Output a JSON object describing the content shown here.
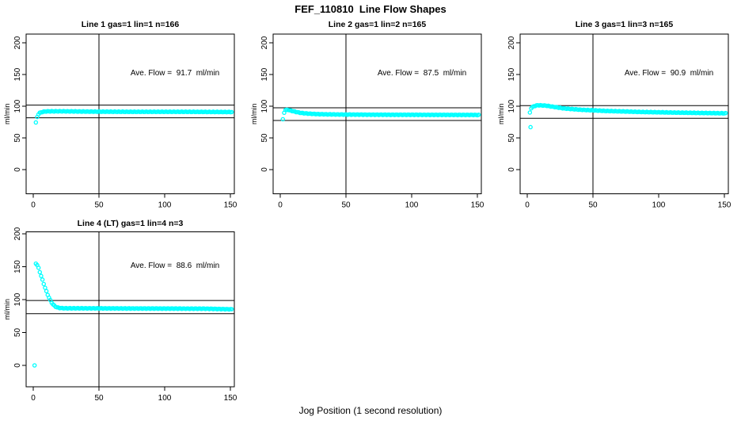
{
  "title": "FEF_110810  Line Flow Shapes",
  "xlabel": "Jog Position (1 second resolution)",
  "ylabel": "ml/min",
  "colors": {
    "marker": "#00FFFF",
    "axis": "#000000",
    "background": "#FFFFFF",
    "text": "#000000"
  },
  "axes": {
    "x_ticks": [
      0,
      50,
      100,
      150
    ],
    "y_ticks": [
      0,
      50,
      100,
      150,
      200
    ]
  },
  "chart_data": [
    {
      "type": "scatter",
      "title": "Line 1 gas=1 lin=1 n=166",
      "line": 1,
      "gas": 1,
      "lin": 1,
      "n": 166,
      "annotation": "Ave. Flow =  91.7  ml/min",
      "ave_flow_ml_min": 91.7,
      "ylabel": "ml/min",
      "marker": "open-circle",
      "marker_color": "#00FFFF",
      "x_ticks": [
        0,
        50,
        100,
        150
      ],
      "y_ticks": [
        0,
        50,
        100,
        150,
        200
      ],
      "xlim": [
        0,
        152
      ],
      "ylim": [
        0,
        200
      ],
      "grid": false,
      "hlines": [
        101.7,
        81.7
      ],
      "vline": 50,
      "x_step": 1,
      "keypoints": [
        [
          2,
          74
        ],
        [
          3,
          83
        ],
        [
          4,
          87.5
        ],
        [
          5,
          89.5
        ],
        [
          7,
          91
        ],
        [
          10,
          91.8
        ],
        [
          20,
          92
        ],
        [
          40,
          91.5
        ],
        [
          70,
          91.2
        ],
        [
          110,
          91.2
        ],
        [
          151,
          90.8
        ]
      ],
      "outliers": []
    },
    {
      "type": "scatter",
      "title": "Line 2 gas=1 lin=2 n=165",
      "line": 2,
      "gas": 1,
      "lin": 2,
      "n": 165,
      "annotation": "Ave. Flow =  87.5  ml/min",
      "ave_flow_ml_min": 87.5,
      "ylabel": "ml/min",
      "marker": "open-circle",
      "marker_color": "#00FFFF",
      "x_ticks": [
        0,
        50,
        100,
        150
      ],
      "y_ticks": [
        0,
        50,
        100,
        150,
        200
      ],
      "xlim": [
        0,
        152
      ],
      "ylim": [
        0,
        200
      ],
      "grid": false,
      "hlines": [
        97.5,
        77.5
      ],
      "vline": 50,
      "x_step": 1,
      "keypoints": [
        [
          2,
          79
        ],
        [
          3,
          90
        ],
        [
          4,
          94
        ],
        [
          6,
          94.3
        ],
        [
          8,
          93
        ],
        [
          12,
          91
        ],
        [
          16,
          89.3
        ],
        [
          22,
          88.2
        ],
        [
          30,
          87.4
        ],
        [
          45,
          86.9
        ],
        [
          70,
          86.6
        ],
        [
          110,
          86.4
        ],
        [
          151,
          86.2
        ]
      ],
      "outliers": []
    },
    {
      "type": "scatter",
      "title": "Line 3 gas=1 lin=3 n=165",
      "line": 3,
      "gas": 1,
      "lin": 3,
      "n": 165,
      "annotation": "Ave. Flow =  90.9  ml/min",
      "ave_flow_ml_min": 90.9,
      "ylabel": "ml/min",
      "marker": "open-circle",
      "marker_color": "#00FFFF",
      "x_ticks": [
        0,
        50,
        100,
        150
      ],
      "y_ticks": [
        0,
        50,
        100,
        150,
        200
      ],
      "xlim": [
        0,
        152
      ],
      "ylim": [
        0,
        200
      ],
      "grid": false,
      "hlines": [
        100.9,
        80.9
      ],
      "vline": 50,
      "x_step": 1,
      "keypoints": [
        [
          2,
          90
        ],
        [
          3,
          97
        ],
        [
          5,
          100
        ],
        [
          8,
          101.5
        ],
        [
          14,
          101
        ],
        [
          20,
          99
        ],
        [
          28,
          96.5
        ],
        [
          40,
          94.5
        ],
        [
          60,
          92.5
        ],
        [
          85,
          91
        ],
        [
          110,
          90
        ],
        [
          130,
          89.4
        ],
        [
          151,
          88.8
        ]
      ],
      "outliers": [
        [
          2.5,
          67
        ]
      ]
    },
    {
      "type": "scatter",
      "title": "Line 4 (LT) gas=1 lin=4 n=3",
      "line": 4,
      "line_tag": "LT",
      "gas": 1,
      "lin": 4,
      "n": 3,
      "annotation": "Ave. Flow =  88.6  ml/min",
      "ave_flow_ml_min": 88.6,
      "ylabel": "ml/min",
      "marker": "open-circle",
      "marker_color": "#00FFFF",
      "x_ticks": [
        0,
        50,
        100,
        150
      ],
      "y_ticks": [
        0,
        50,
        100,
        150,
        200
      ],
      "xlim": [
        0,
        152
      ],
      "ylim": [
        0,
        200
      ],
      "grid": false,
      "hlines": [
        98.6,
        78.6
      ],
      "vline": 50,
      "x_step": 1,
      "keypoints": [
        [
          2,
          155
        ],
        [
          3,
          152.5
        ],
        [
          4,
          148
        ],
        [
          5,
          142
        ],
        [
          6,
          136
        ],
        [
          7,
          130
        ],
        [
          8,
          124
        ],
        [
          9,
          118
        ],
        [
          10,
          112.5
        ],
        [
          11,
          107.5
        ],
        [
          12,
          103
        ],
        [
          13,
          99
        ],
        [
          14,
          95.5
        ],
        [
          15,
          92.8
        ],
        [
          16,
          90.8
        ],
        [
          17,
          89.3
        ],
        [
          18,
          88.3
        ],
        [
          20,
          87.3
        ],
        [
          24,
          86.8
        ],
        [
          35,
          86.8
        ],
        [
          60,
          86.6
        ],
        [
          100,
          86.4
        ],
        [
          130,
          86.2
        ],
        [
          151,
          85.3
        ]
      ],
      "outliers": [
        [
          1,
          0
        ]
      ]
    }
  ]
}
